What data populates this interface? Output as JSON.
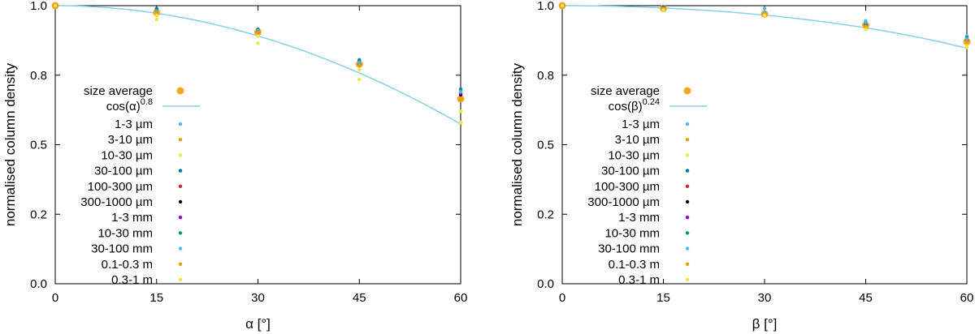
{
  "chart_data": [
    {
      "type": "scatter",
      "xlabel": "α [°]",
      "ylabel": "normalised column density",
      "xlim": [
        0,
        60
      ],
      "ylim": [
        0,
        1
      ],
      "xticks": [
        "0",
        "15",
        "30",
        "45",
        "60"
      ],
      "yticks": [
        "0.0",
        "0.2",
        "0.5",
        "0.8",
        "1.0"
      ],
      "x": [
        0,
        15,
        30,
        45,
        60
      ],
      "fit": {
        "label_base": "cos(α)",
        "label_exp": "0.8",
        "exponent": 0.8,
        "color": "#87cfeb"
      },
      "average": {
        "label": "size average",
        "values": [
          1.0,
          0.975,
          0.905,
          0.79,
          0.665
        ],
        "color": "#f5a623"
      },
      "series": [
        {
          "name": "1-3 µm",
          "color": "#56b4e9",
          "values": [
            1.0,
            0.98,
            0.91,
            0.8,
            0.69
          ]
        },
        {
          "name": "3-10 µm",
          "color": "#e69f00",
          "values": [
            1.0,
            0.975,
            0.905,
            0.785,
            0.665
          ]
        },
        {
          "name": "10-30 µm",
          "color": "#f0e442",
          "values": [
            1.0,
            0.95,
            0.865,
            0.735,
            0.58
          ]
        },
        {
          "name": "30-100 µm",
          "color": "#0072b2",
          "values": [
            1.0,
            0.99,
            0.915,
            0.805,
            0.7
          ]
        },
        {
          "name": "100-300 µm",
          "color": "#d62728",
          "values": [
            1.0,
            0.985,
            0.91,
            0.795,
            0.685
          ]
        },
        {
          "name": "300-1000 µm",
          "color": "#000000",
          "values": [
            1.0,
            0.98,
            0.905,
            0.79,
            0.68
          ]
        },
        {
          "name": "1-3 mm",
          "color": "#9400d3",
          "values": [
            1.0,
            0.98,
            0.905,
            0.79,
            0.685
          ]
        },
        {
          "name": "10-30 mm",
          "color": "#009e73",
          "values": [
            1.0,
            0.985,
            0.91,
            0.8,
            0.695
          ]
        },
        {
          "name": "30-100 mm",
          "color": "#56b4e9",
          "values": [
            1.0,
            0.98,
            0.91,
            0.795,
            0.69
          ]
        },
        {
          "name": "0.1-0.3 m",
          "color": "#e69f00",
          "values": [
            1.0,
            0.975,
            0.905,
            0.785,
            0.665
          ]
        },
        {
          "name": "0.3-1 m",
          "color": "#f0e442",
          "values": [
            1.0,
            0.965,
            0.89,
            0.77,
            0.62
          ]
        }
      ]
    },
    {
      "type": "scatter",
      "xlabel": "β  [°]",
      "ylabel": "normalised column density",
      "xlim": [
        0,
        60
      ],
      "ylim": [
        0,
        1
      ],
      "xticks": [
        "0",
        "15",
        "30",
        "45",
        "60"
      ],
      "yticks": [
        "0.0",
        "0.2",
        "0.5",
        "0.8",
        "1.0"
      ],
      "x": [
        0,
        15,
        30,
        45,
        60
      ],
      "fit": {
        "label_base": "cos(β)",
        "label_exp": "0.24",
        "exponent": 0.24,
        "color": "#87cfeb"
      },
      "average": {
        "label": "size average",
        "values": [
          1.0,
          0.99,
          0.97,
          0.93,
          0.87
        ],
        "color": "#f5a623"
      },
      "series": [
        {
          "name": "1-3 µm",
          "color": "#56b4e9",
          "values": [
            1.0,
            0.995,
            0.99,
            0.945,
            0.89
          ]
        },
        {
          "name": "3-10 µm",
          "color": "#e69f00",
          "values": [
            1.0,
            0.99,
            0.97,
            0.93,
            0.875
          ]
        },
        {
          "name": "10-30 µm",
          "color": "#f0e442",
          "values": [
            1.0,
            0.99,
            0.965,
            0.915,
            0.85
          ]
        },
        {
          "name": "30-100 µm",
          "color": "#0072b2",
          "values": [
            1.0,
            0.995,
            0.975,
            0.94,
            0.885
          ]
        },
        {
          "name": "100-300 µm",
          "color": "#d62728",
          "values": [
            1.0,
            0.99,
            0.97,
            0.935,
            0.88
          ]
        },
        {
          "name": "300-1000 µm",
          "color": "#000000",
          "values": [
            1.0,
            0.99,
            0.97,
            0.93,
            0.875
          ]
        },
        {
          "name": "1-3 mm",
          "color": "#9400d3",
          "values": [
            1.0,
            0.99,
            0.97,
            0.93,
            0.875
          ]
        },
        {
          "name": "10-30 mm",
          "color": "#009e73",
          "values": [
            1.0,
            0.985,
            0.975,
            0.935,
            0.885
          ]
        },
        {
          "name": "30-100 mm",
          "color": "#56b4e9",
          "values": [
            1.0,
            0.99,
            0.975,
            0.94,
            0.88
          ]
        },
        {
          "name": "0.1-0.3 m",
          "color": "#e69f00",
          "values": [
            1.0,
            0.99,
            0.97,
            0.925,
            0.87
          ]
        },
        {
          "name": "0.3-1 m",
          "color": "#f0e442",
          "values": [
            1.0,
            0.985,
            0.965,
            0.915,
            0.855
          ]
        }
      ]
    }
  ]
}
